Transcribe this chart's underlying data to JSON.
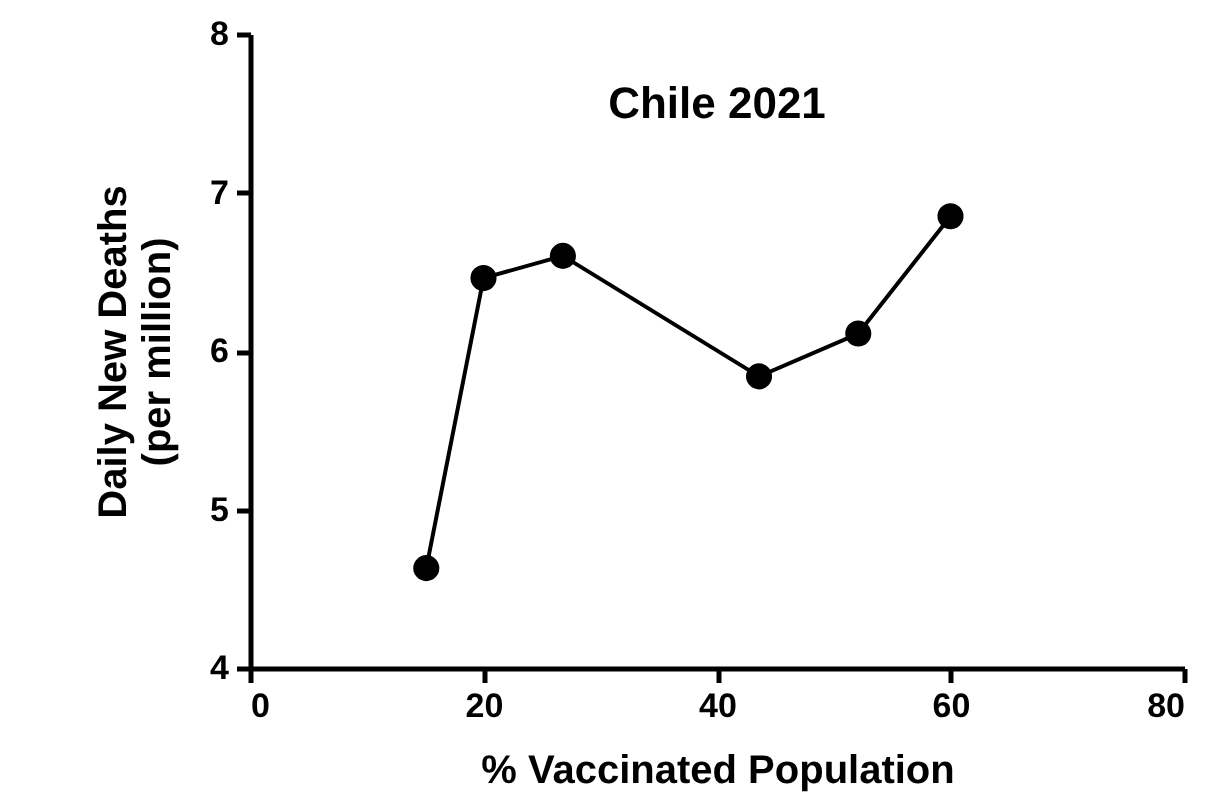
{
  "chart_data": {
    "type": "line",
    "title": "Chile 2021",
    "xlabel": "% Vaccinated Population",
    "ylabel": "Daily New Deaths\n(per million)",
    "x": [
      15.1,
      20.0,
      26.8,
      43.6,
      52.1,
      60.0
    ],
    "series": [
      {
        "color": "#000000",
        "values": [
          4.63,
          6.46,
          6.6,
          5.84,
          6.11,
          6.85
        ]
      }
    ],
    "xlim": [
      0,
      80
    ],
    "xticks": [
      0,
      20,
      40,
      60,
      80
    ],
    "ylim": [
      4,
      8
    ],
    "yticks": [
      4,
      5,
      6,
      7,
      8
    ],
    "grid": false,
    "legend": false,
    "marker": "circle",
    "line_style": "solid"
  }
}
